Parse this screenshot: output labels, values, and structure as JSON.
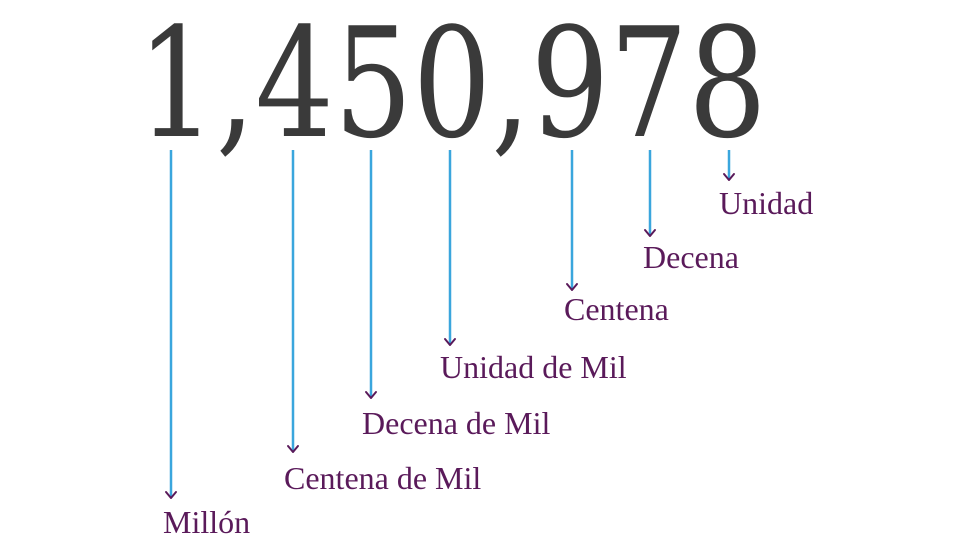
{
  "number_text": "1,450,978",
  "places": [
    {
      "key": "millon",
      "label": "Millón"
    },
    {
      "key": "centena-de-mil",
      "label": "Centena de Mil"
    },
    {
      "key": "decena-de-mil",
      "label": "Decena de Mil"
    },
    {
      "key": "unidad-de-mil",
      "label": "Unidad de Mil"
    },
    {
      "key": "centena",
      "label": "Centena"
    },
    {
      "key": "decena",
      "label": "Decena"
    },
    {
      "key": "unidad",
      "label": "Unidad"
    }
  ],
  "colors": {
    "number": "#3a3a3a",
    "label": "#5a1a5a",
    "connector": "#3aa6dd"
  }
}
